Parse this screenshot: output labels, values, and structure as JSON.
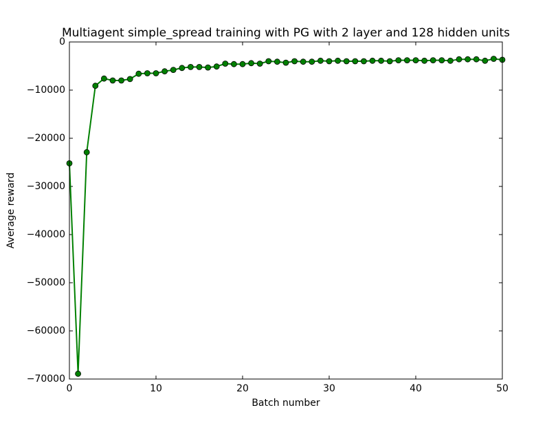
{
  "chart_data": {
    "type": "line",
    "title": "Multiagent simple_spread training with PG with 2 layer and 128 hidden units",
    "x_label": "Batch number",
    "y_label": "Average reward",
    "x": [
      0,
      1,
      2,
      3,
      4,
      5,
      6,
      7,
      8,
      9,
      10,
      11,
      12,
      13,
      14,
      15,
      16,
      17,
      18,
      19,
      20,
      21,
      22,
      23,
      24,
      25,
      26,
      27,
      28,
      29,
      30,
      31,
      32,
      33,
      34,
      35,
      36,
      37,
      38,
      39,
      40,
      41,
      42,
      43,
      44,
      45,
      46,
      47,
      48,
      49,
      50
    ],
    "values": [
      -25200,
      -68900,
      -22900,
      -9100,
      -7600,
      -8000,
      -8000,
      -7700,
      -6600,
      -6500,
      -6500,
      -6100,
      -5800,
      -5400,
      -5200,
      -5200,
      -5300,
      -5100,
      -4500,
      -4600,
      -4600,
      -4400,
      -4500,
      -4000,
      -4100,
      -4300,
      -4000,
      -4100,
      -4100,
      -3900,
      -4000,
      -3900,
      -4000,
      -4000,
      -4000,
      -3900,
      -3900,
      -4000,
      -3800,
      -3800,
      -3800,
      -3900,
      -3800,
      -3800,
      -3900,
      -3600,
      -3600,
      -3600,
      -3900,
      -3500,
      -3700
    ],
    "color": "#008000",
    "marker_edge_color": "#000000",
    "xlim": [
      0,
      50
    ],
    "xticks": [
      0,
      10,
      20,
      30,
      40,
      50
    ],
    "ylim": [
      -70000,
      0
    ],
    "yticks": [
      {
        "value": -70000,
        "label": "−70000"
      },
      {
        "value": -60000,
        "label": "−60000"
      },
      {
        "value": -50000,
        "label": "−50000"
      },
      {
        "value": -40000,
        "label": "−40000"
      },
      {
        "value": -30000,
        "label": "−30000"
      },
      {
        "value": -20000,
        "label": "−20000"
      },
      {
        "value": -10000,
        "label": "−10000"
      },
      0
    ],
    "grid": false
  }
}
